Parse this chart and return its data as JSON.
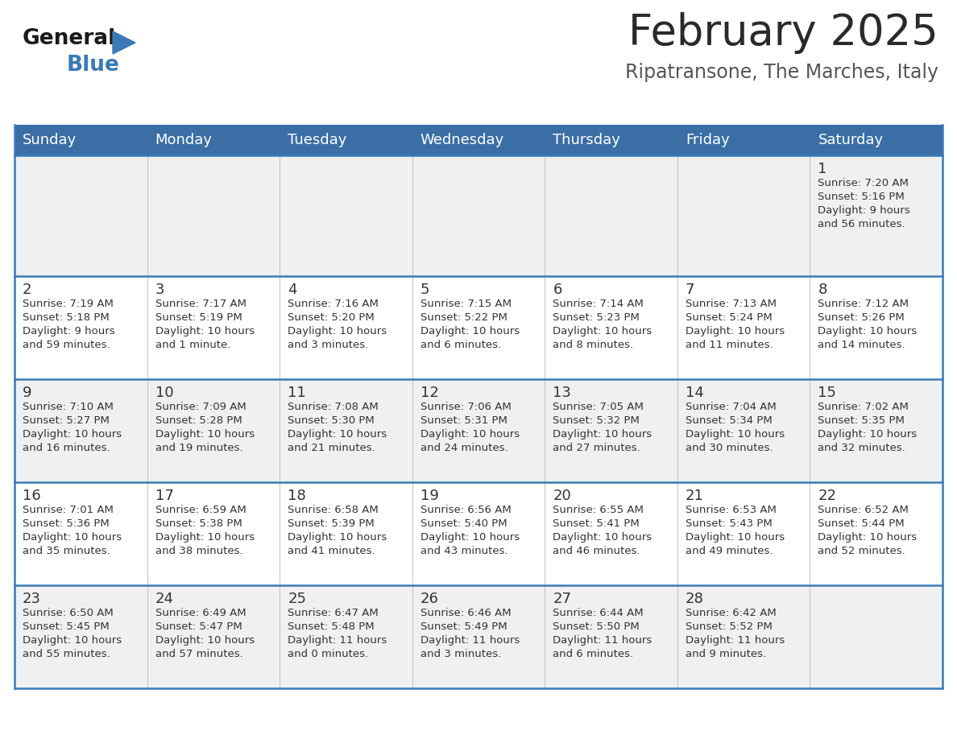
{
  "title": "February 2025",
  "subtitle": "Ripatransone, The Marches, Italy",
  "days_of_week": [
    "Sunday",
    "Monday",
    "Tuesday",
    "Wednesday",
    "Thursday",
    "Friday",
    "Saturday"
  ],
  "header_bg": "#3a6ea5",
  "header_text_color": "#ffffff",
  "cell_bg_light": "#f0f0f0",
  "cell_bg_white": "#ffffff",
  "separator_color": "#3a7ab5",
  "text_color": "#333333",
  "day_num_color": "#333333",
  "calendar": [
    [
      null,
      null,
      null,
      null,
      null,
      null,
      {
        "day": 1,
        "sunrise": "7:20 AM",
        "sunset": "5:16 PM",
        "daylight": "9 hours and 56 minutes."
      }
    ],
    [
      {
        "day": 2,
        "sunrise": "7:19 AM",
        "sunset": "5:18 PM",
        "daylight": "9 hours and 59 minutes."
      },
      {
        "day": 3,
        "sunrise": "7:17 AM",
        "sunset": "5:19 PM",
        "daylight": "10 hours and 1 minute."
      },
      {
        "day": 4,
        "sunrise": "7:16 AM",
        "sunset": "5:20 PM",
        "daylight": "10 hours and 3 minutes."
      },
      {
        "day": 5,
        "sunrise": "7:15 AM",
        "sunset": "5:22 PM",
        "daylight": "10 hours and 6 minutes."
      },
      {
        "day": 6,
        "sunrise": "7:14 AM",
        "sunset": "5:23 PM",
        "daylight": "10 hours and 8 minutes."
      },
      {
        "day": 7,
        "sunrise": "7:13 AM",
        "sunset": "5:24 PM",
        "daylight": "10 hours and 11 minutes."
      },
      {
        "day": 8,
        "sunrise": "7:12 AM",
        "sunset": "5:26 PM",
        "daylight": "10 hours and 14 minutes."
      }
    ],
    [
      {
        "day": 9,
        "sunrise": "7:10 AM",
        "sunset": "5:27 PM",
        "daylight": "10 hours and 16 minutes."
      },
      {
        "day": 10,
        "sunrise": "7:09 AM",
        "sunset": "5:28 PM",
        "daylight": "10 hours and 19 minutes."
      },
      {
        "day": 11,
        "sunrise": "7:08 AM",
        "sunset": "5:30 PM",
        "daylight": "10 hours and 21 minutes."
      },
      {
        "day": 12,
        "sunrise": "7:06 AM",
        "sunset": "5:31 PM",
        "daylight": "10 hours and 24 minutes."
      },
      {
        "day": 13,
        "sunrise": "7:05 AM",
        "sunset": "5:32 PM",
        "daylight": "10 hours and 27 minutes."
      },
      {
        "day": 14,
        "sunrise": "7:04 AM",
        "sunset": "5:34 PM",
        "daylight": "10 hours and 30 minutes."
      },
      {
        "day": 15,
        "sunrise": "7:02 AM",
        "sunset": "5:35 PM",
        "daylight": "10 hours and 32 minutes."
      }
    ],
    [
      {
        "day": 16,
        "sunrise": "7:01 AM",
        "sunset": "5:36 PM",
        "daylight": "10 hours and 35 minutes."
      },
      {
        "day": 17,
        "sunrise": "6:59 AM",
        "sunset": "5:38 PM",
        "daylight": "10 hours and 38 minutes."
      },
      {
        "day": 18,
        "sunrise": "6:58 AM",
        "sunset": "5:39 PM",
        "daylight": "10 hours and 41 minutes."
      },
      {
        "day": 19,
        "sunrise": "6:56 AM",
        "sunset": "5:40 PM",
        "daylight": "10 hours and 43 minutes."
      },
      {
        "day": 20,
        "sunrise": "6:55 AM",
        "sunset": "5:41 PM",
        "daylight": "10 hours and 46 minutes."
      },
      {
        "day": 21,
        "sunrise": "6:53 AM",
        "sunset": "5:43 PM",
        "daylight": "10 hours and 49 minutes."
      },
      {
        "day": 22,
        "sunrise": "6:52 AM",
        "sunset": "5:44 PM",
        "daylight": "10 hours and 52 minutes."
      }
    ],
    [
      {
        "day": 23,
        "sunrise": "6:50 AM",
        "sunset": "5:45 PM",
        "daylight": "10 hours and 55 minutes."
      },
      {
        "day": 24,
        "sunrise": "6:49 AM",
        "sunset": "5:47 PM",
        "daylight": "10 hours and 57 minutes."
      },
      {
        "day": 25,
        "sunrise": "6:47 AM",
        "sunset": "5:48 PM",
        "daylight": "11 hours and 0 minutes."
      },
      {
        "day": 26,
        "sunrise": "6:46 AM",
        "sunset": "5:49 PM",
        "daylight": "11 hours and 3 minutes."
      },
      {
        "day": 27,
        "sunrise": "6:44 AM",
        "sunset": "5:50 PM",
        "daylight": "11 hours and 6 minutes."
      },
      {
        "day": 28,
        "sunrise": "6:42 AM",
        "sunset": "5:52 PM",
        "daylight": "11 hours and 9 minutes."
      },
      null
    ]
  ],
  "title_fontsize": 38,
  "subtitle_fontsize": 17,
  "header_fontsize": 13,
  "day_num_fontsize": 13,
  "cell_fontsize": 9.5
}
